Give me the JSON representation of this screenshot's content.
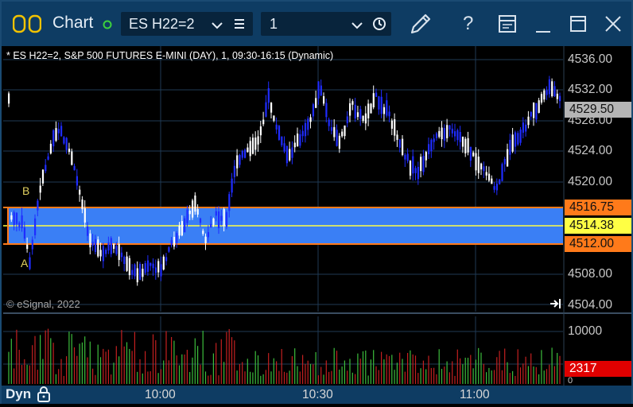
{
  "window": {
    "title": "Chart",
    "symbol": "ES H22=2",
    "interval": "1"
  },
  "chart": {
    "description": "* ES H22=2, S&P 500 FUTURES E-MINI (DAY), 1, 09:30-16:15 (Dynamic)",
    "copyright": "© eSignal, 2022",
    "price_axis": [
      "4536.00",
      "4532.00",
      "4528.00",
      "4524.00",
      "4520.00",
      "4508.00",
      "4504.00"
    ],
    "price_tags": {
      "last": "4529.50",
      "band_upper": "4516.75",
      "band_mid": "4514.38",
      "band_lower": "4512.00"
    },
    "markers": {
      "b": "B",
      "a": "A"
    },
    "volume_axis": "10000",
    "volume_last": "2317",
    "volume_small_label": "0",
    "time_axis": [
      "10:00",
      "10:30",
      "11:00"
    ],
    "mode_label": "Dyn"
  },
  "colors": {
    "titlebar": "#0e3c63",
    "band_fill": "#3a7ff5",
    "band_border": "#ff7a1a",
    "band_mid": "#ffff44",
    "up_bar": "#ffffff",
    "down_bar": "#1f2cff",
    "volume_up": "#3cbd3c",
    "volume_down": "#c42020",
    "last_tag": "#b5b5b5",
    "volume_tag": "#e00000"
  }
}
